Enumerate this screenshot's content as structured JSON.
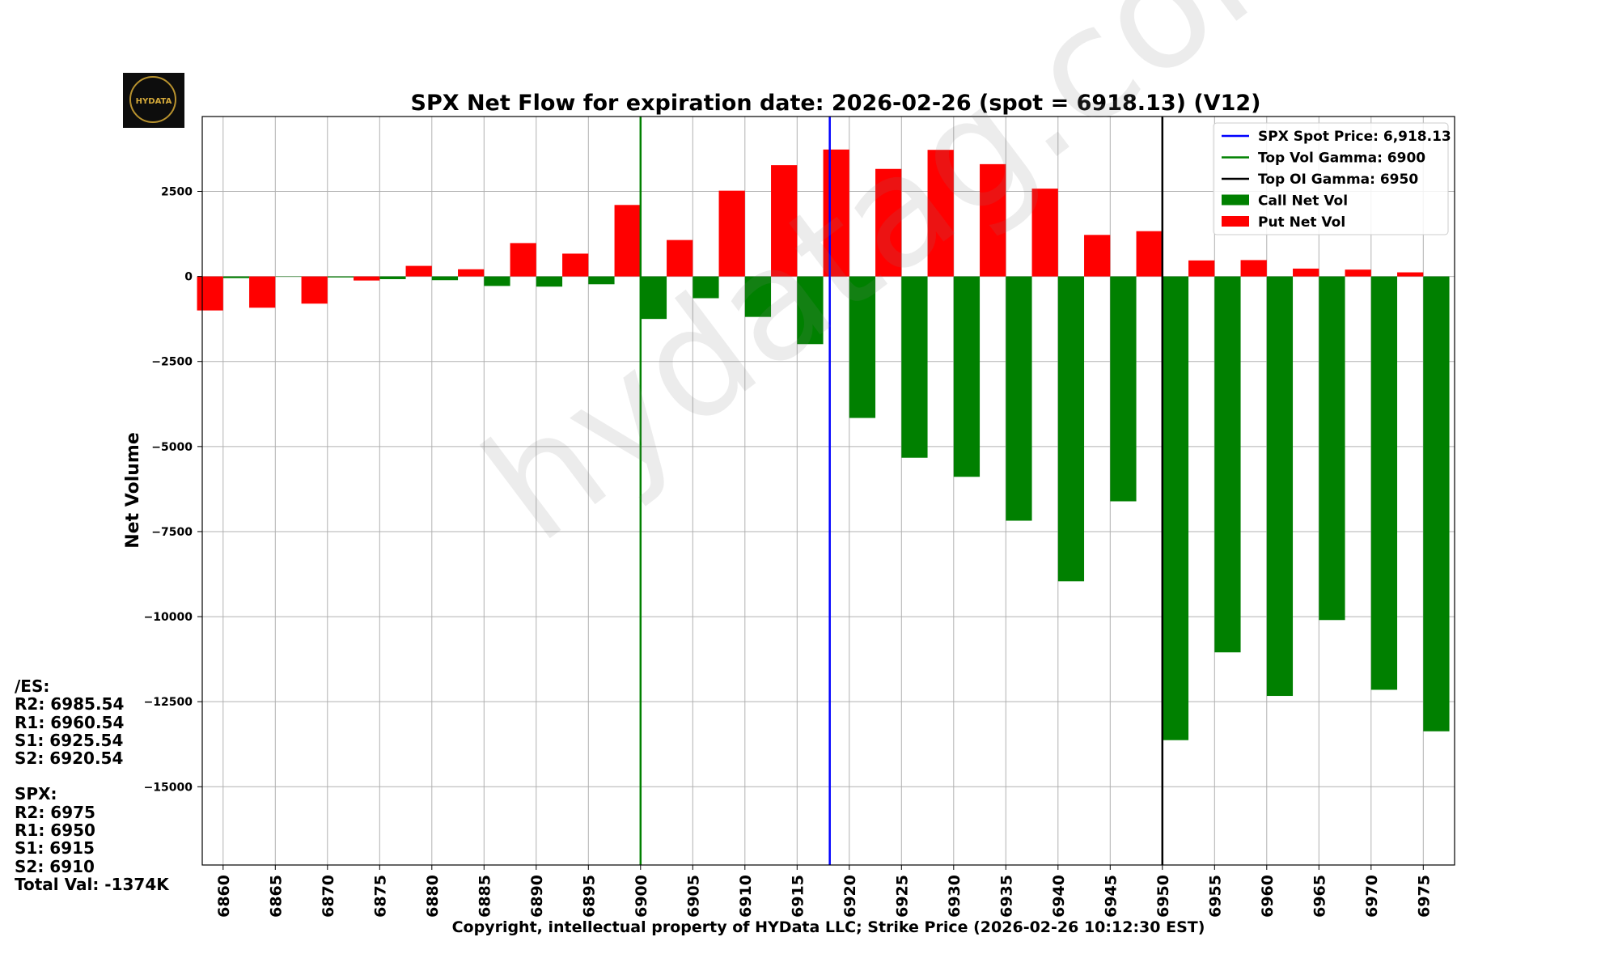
{
  "logo": {
    "text": "HYDATA"
  },
  "watermark": "hydatag.com",
  "chart_data": {
    "type": "bar",
    "title": "SPX Net Flow for expiration date: 2026-02-26 (spot = 6918.13) (V12)",
    "xlabel": "Copyright, intellectual property of HYData LLC; Strike Price (2026-02-26 10:12:30 EST)",
    "ylabel": "Net Volume",
    "ylim": [
      -17300,
      4700
    ],
    "xlim": [
      6858,
      6978
    ],
    "yticks": [
      2500,
      0,
      -2500,
      -5000,
      -7500,
      -10000,
      -12500,
      -15000
    ],
    "xticks": [
      6860,
      6865,
      6870,
      6875,
      6880,
      6885,
      6890,
      6895,
      6900,
      6905,
      6910,
      6915,
      6920,
      6925,
      6930,
      6935,
      6940,
      6945,
      6950,
      6955,
      6960,
      6965,
      6970,
      6975
    ],
    "grid": true,
    "strikes": [
      6860,
      6865,
      6870,
      6875,
      6880,
      6885,
      6890,
      6895,
      6900,
      6905,
      6910,
      6915,
      6920,
      6925,
      6930,
      6935,
      6940,
      6945,
      6950,
      6955,
      6960,
      6965,
      6970,
      6975
    ],
    "series": [
      {
        "name": "Call Net Vol",
        "color": "#008000",
        "values": [
          -50,
          0,
          -30,
          -80,
          -110,
          -280,
          -300,
          -230,
          -1250,
          -640,
          -1190,
          -1990,
          -4160,
          -5330,
          -5890,
          -7180,
          -8960,
          -6610,
          -13630,
          -11050,
          -12330,
          -10100,
          -12150,
          -13370
        ]
      },
      {
        "name": "Put Net Vol",
        "color": "#ff0000",
        "values": [
          -1000,
          -920,
          -800,
          -120,
          310,
          210,
          980,
          670,
          2100,
          1070,
          2520,
          3270,
          3730,
          3160,
          3720,
          3300,
          2580,
          1220,
          1330,
          470,
          480,
          230,
          200,
          120
        ]
      }
    ],
    "vlines": [
      {
        "name": "SPX Spot Price: 6,918.13",
        "x": 6918.13,
        "color": "#0000ff"
      },
      {
        "name": "Top Vol Gamma: 6900",
        "x": 6900,
        "color": "#008000"
      },
      {
        "name": "Top OI Gamma: 6950",
        "x": 6950,
        "color": "#000000"
      }
    ],
    "legend_position": "top-right"
  },
  "levels": {
    "es_header": "/ES:",
    "es": [
      "R2: 6985.54",
      "R1: 6960.54",
      "S1: 6925.54",
      "S2: 6920.54"
    ],
    "spx_header": "SPX:",
    "spx": [
      "R2: 6975",
      "R1: 6950",
      "S1: 6915",
      "S2: 6910"
    ],
    "total": "Total Val: -1374K"
  }
}
